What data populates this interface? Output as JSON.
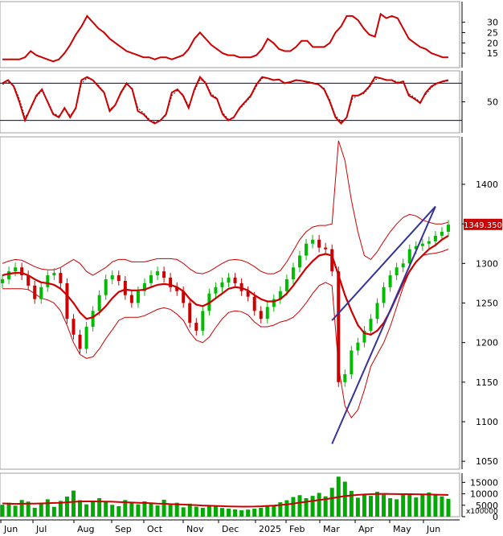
{
  "colors": {
    "adx": "#cc0000",
    "stoch_k": "#cc0000",
    "stoch_d": "#222222",
    "stoch_level": "#000080",
    "up_candle": "#00bb00",
    "down_candle": "#cc0000",
    "ma": "#cc0000",
    "band": "#cc0000",
    "trendline": "#333399",
    "volume_bar": "#00aa00",
    "volume_ma": "#cc0000",
    "last_price_label_bg": "#cc0000",
    "last_price_label_text": "#ffffff",
    "axis": "#000000",
    "panel_border": "#888888"
  },
  "chart_data": [
    {
      "type": "line",
      "panel": "adx",
      "yticks": [
        15,
        20,
        25,
        30
      ],
      "ylim": [
        8,
        40
      ],
      "series": [
        {
          "values": [
            12,
            12,
            12,
            12,
            13,
            16,
            14,
            13,
            12,
            11,
            12,
            15,
            19,
            24,
            28,
            33,
            30,
            27,
            25,
            22,
            20,
            18,
            16,
            15,
            14,
            13,
            13,
            12,
            13,
            13,
            12,
            13,
            14,
            17,
            22,
            25,
            22,
            19,
            17,
            15,
            14,
            14,
            13,
            13,
            13,
            14,
            17,
            22,
            20,
            17,
            16,
            16,
            18,
            21,
            21,
            18,
            18,
            18,
            20,
            25,
            28,
            33,
            33,
            31,
            27,
            24,
            23,
            34,
            32,
            33,
            32,
            27,
            22,
            20,
            18,
            17,
            15,
            14,
            13,
            13
          ]
        }
      ]
    },
    {
      "type": "line",
      "panel": "stochastic",
      "yticks": [
        50
      ],
      "ylim": [
        0,
        100
      ],
      "levels": [
        80,
        20
      ],
      "series": [
        {
          "values": [
            80,
            85,
            75,
            50,
            20,
            40,
            60,
            70,
            50,
            30,
            25,
            40,
            25,
            40,
            85,
            90,
            85,
            75,
            65,
            35,
            45,
            65,
            80,
            70,
            35,
            30,
            20,
            15,
            20,
            30,
            65,
            70,
            60,
            40,
            70,
            90,
            80,
            60,
            55,
            30,
            20,
            25,
            40,
            50,
            60,
            78,
            90,
            88,
            85,
            86,
            80,
            82,
            85,
            84,
            82,
            80,
            78,
            70,
            50,
            25,
            15,
            25,
            60,
            60,
            65,
            75,
            90,
            88,
            85,
            85,
            80,
            83,
            60,
            55,
            48,
            65,
            75,
            80,
            83,
            85
          ]
        },
        {
          "values": [
            78,
            82,
            77,
            55,
            25,
            38,
            58,
            68,
            52,
            32,
            27,
            38,
            28,
            38,
            80,
            88,
            86,
            77,
            66,
            38,
            44,
            63,
            78,
            72,
            40,
            32,
            22,
            17,
            20,
            28,
            60,
            68,
            62,
            43,
            67,
            86,
            82,
            63,
            56,
            33,
            22,
            25,
            38,
            48,
            58,
            75,
            88,
            88,
            86,
            85,
            81,
            81,
            84,
            84,
            83,
            81,
            78,
            72,
            53,
            28,
            18,
            24,
            55,
            60,
            63,
            73,
            86,
            88,
            86,
            85,
            82,
            82,
            63,
            57,
            50,
            62,
            73,
            79,
            82,
            84
          ]
        }
      ]
    },
    {
      "type": "candlestick",
      "panel": "price",
      "yticks": [
        1050,
        1100,
        1150,
        1200,
        1250,
        1300,
        1350,
        1400
      ],
      "ylim": [
        1040,
        1460
      ],
      "last_price": "1349.350",
      "close": [
        1280,
        1290,
        1295,
        1285,
        1272,
        1255,
        1270,
        1285,
        1288,
        1275,
        1230,
        1210,
        1192,
        1220,
        1240,
        1260,
        1280,
        1285,
        1278,
        1260,
        1250,
        1265,
        1275,
        1285,
        1290,
        1282,
        1270,
        1265,
        1250,
        1225,
        1215,
        1240,
        1262,
        1270,
        1276,
        1282,
        1275,
        1265,
        1258,
        1240,
        1230,
        1245,
        1255,
        1265,
        1280,
        1295,
        1310,
        1325,
        1330,
        1320,
        1318,
        1290,
        1150,
        1160,
        1190,
        1200,
        1215,
        1230,
        1250,
        1270,
        1285,
        1295,
        1300,
        1318,
        1322,
        1325,
        1328,
        1335,
        1340,
        1349
      ],
      "ma20": [
        1285,
        1287,
        1288,
        1288,
        1285,
        1280,
        1276,
        1275,
        1273,
        1268,
        1260,
        1250,
        1238,
        1230,
        1232,
        1238,
        1246,
        1256,
        1264,
        1267,
        1266,
        1266,
        1267,
        1270,
        1273,
        1274,
        1273,
        1270,
        1265,
        1255,
        1248,
        1246,
        1250,
        1256,
        1262,
        1268,
        1270,
        1269,
        1266,
        1260,
        1255,
        1252,
        1252,
        1255,
        1262,
        1272,
        1283,
        1294,
        1303,
        1310,
        1312,
        1310,
        1285,
        1260,
        1240,
        1222,
        1212,
        1210,
        1215,
        1225,
        1240,
        1258,
        1275,
        1290,
        1302,
        1310,
        1318,
        1323,
        1330,
        1335
      ],
      "band_upper": [
        1300,
        1303,
        1305,
        1304,
        1300,
        1296,
        1293,
        1292,
        1292,
        1295,
        1300,
        1305,
        1300,
        1290,
        1285,
        1290,
        1295,
        1302,
        1305,
        1305,
        1302,
        1302,
        1302,
        1304,
        1306,
        1306,
        1306,
        1305,
        1300,
        1293,
        1288,
        1287,
        1290,
        1295,
        1300,
        1304,
        1305,
        1304,
        1301,
        1296,
        1290,
        1287,
        1287,
        1291,
        1302,
        1316,
        1330,
        1340,
        1346,
        1348,
        1348,
        1350,
        1455,
        1430,
        1380,
        1340,
        1310,
        1305,
        1315,
        1328,
        1340,
        1350,
        1358,
        1362,
        1360,
        1355,
        1352,
        1350,
        1350,
        1352
      ],
      "band_lower": [
        1268,
        1268,
        1268,
        1268,
        1267,
        1262,
        1256,
        1254,
        1250,
        1240,
        1222,
        1200,
        1185,
        1180,
        1182,
        1192,
        1205,
        1216,
        1228,
        1232,
        1232,
        1232,
        1234,
        1238,
        1242,
        1244,
        1242,
        1236,
        1228,
        1213,
        1203,
        1200,
        1207,
        1219,
        1230,
        1238,
        1240,
        1239,
        1235,
        1226,
        1220,
        1220,
        1222,
        1226,
        1228,
        1232,
        1240,
        1250,
        1262,
        1272,
        1276,
        1272,
        1170,
        1120,
        1105,
        1115,
        1140,
        1170,
        1185,
        1200,
        1220,
        1245,
        1270,
        1290,
        1302,
        1310,
        1312,
        1313,
        1315,
        1318
      ],
      "trendlines": [
        {
          "from": [
            51,
            1228
          ],
          "to": [
            67,
            1372
          ]
        },
        {
          "from": [
            51,
            1072
          ],
          "to": [
            67,
            1372
          ]
        }
      ]
    },
    {
      "type": "bar",
      "panel": "volume",
      "ylabel": "x100000",
      "yticks": [
        0,
        5000,
        10000,
        15000
      ],
      "ylim": [
        0,
        19000
      ],
      "values": [
        5200,
        6100,
        4800,
        7300,
        6600,
        3900,
        5800,
        7600,
        4300,
        6900,
        8800,
        11400,
        7200,
        5400,
        6400,
        8100,
        6700,
        5200,
        4600,
        7300,
        6100,
        5400,
        6700,
        5800,
        4900,
        7400,
        5200,
        6100,
        4100,
        5700,
        4400,
        3900,
        5100,
        4700,
        3800,
        3500,
        3200,
        2800,
        3100,
        3500,
        3900,
        4600,
        5100,
        6300,
        7200,
        8600,
        9400,
        8100,
        9100,
        10400,
        8900,
        12600,
        17500,
        15300,
        11300,
        8300,
        9600,
        9100,
        10900,
        9600,
        8100,
        7600,
        9600,
        10200,
        8400,
        9600,
        10600,
        9900,
        8900,
        7800
      ],
      "ma": [
        5800,
        5700,
        5600,
        5650,
        5700,
        5750,
        5800,
        5900,
        6000,
        6100,
        6300,
        6500,
        6650,
        6700,
        6700,
        6650,
        6600,
        6550,
        6450,
        6300,
        6200,
        6100,
        6000,
        5900,
        5750,
        5650,
        5500,
        5400,
        5300,
        5150,
        5050,
        4900,
        4800,
        4700,
        4600,
        4500,
        4450,
        4400,
        4400,
        4450,
        4550,
        4700,
        4850,
        5100,
        5400,
        5750,
        6150,
        6500,
        6900,
        7300,
        7650,
        8100,
        8600,
        9000,
        9300,
        9550,
        9700,
        9850,
        9950,
        10000,
        9950,
        9900,
        9850,
        9850,
        9800,
        9750,
        9700,
        9650,
        9600,
        9500
      ]
    }
  ],
  "xaxis": {
    "labels": [
      "Jun",
      "Jul",
      "Aug",
      "Sep",
      "Oct",
      "Nov",
      "Dec",
      "2025",
      "Feb",
      "Mar",
      "Apr",
      "May",
      "Jun"
    ]
  }
}
